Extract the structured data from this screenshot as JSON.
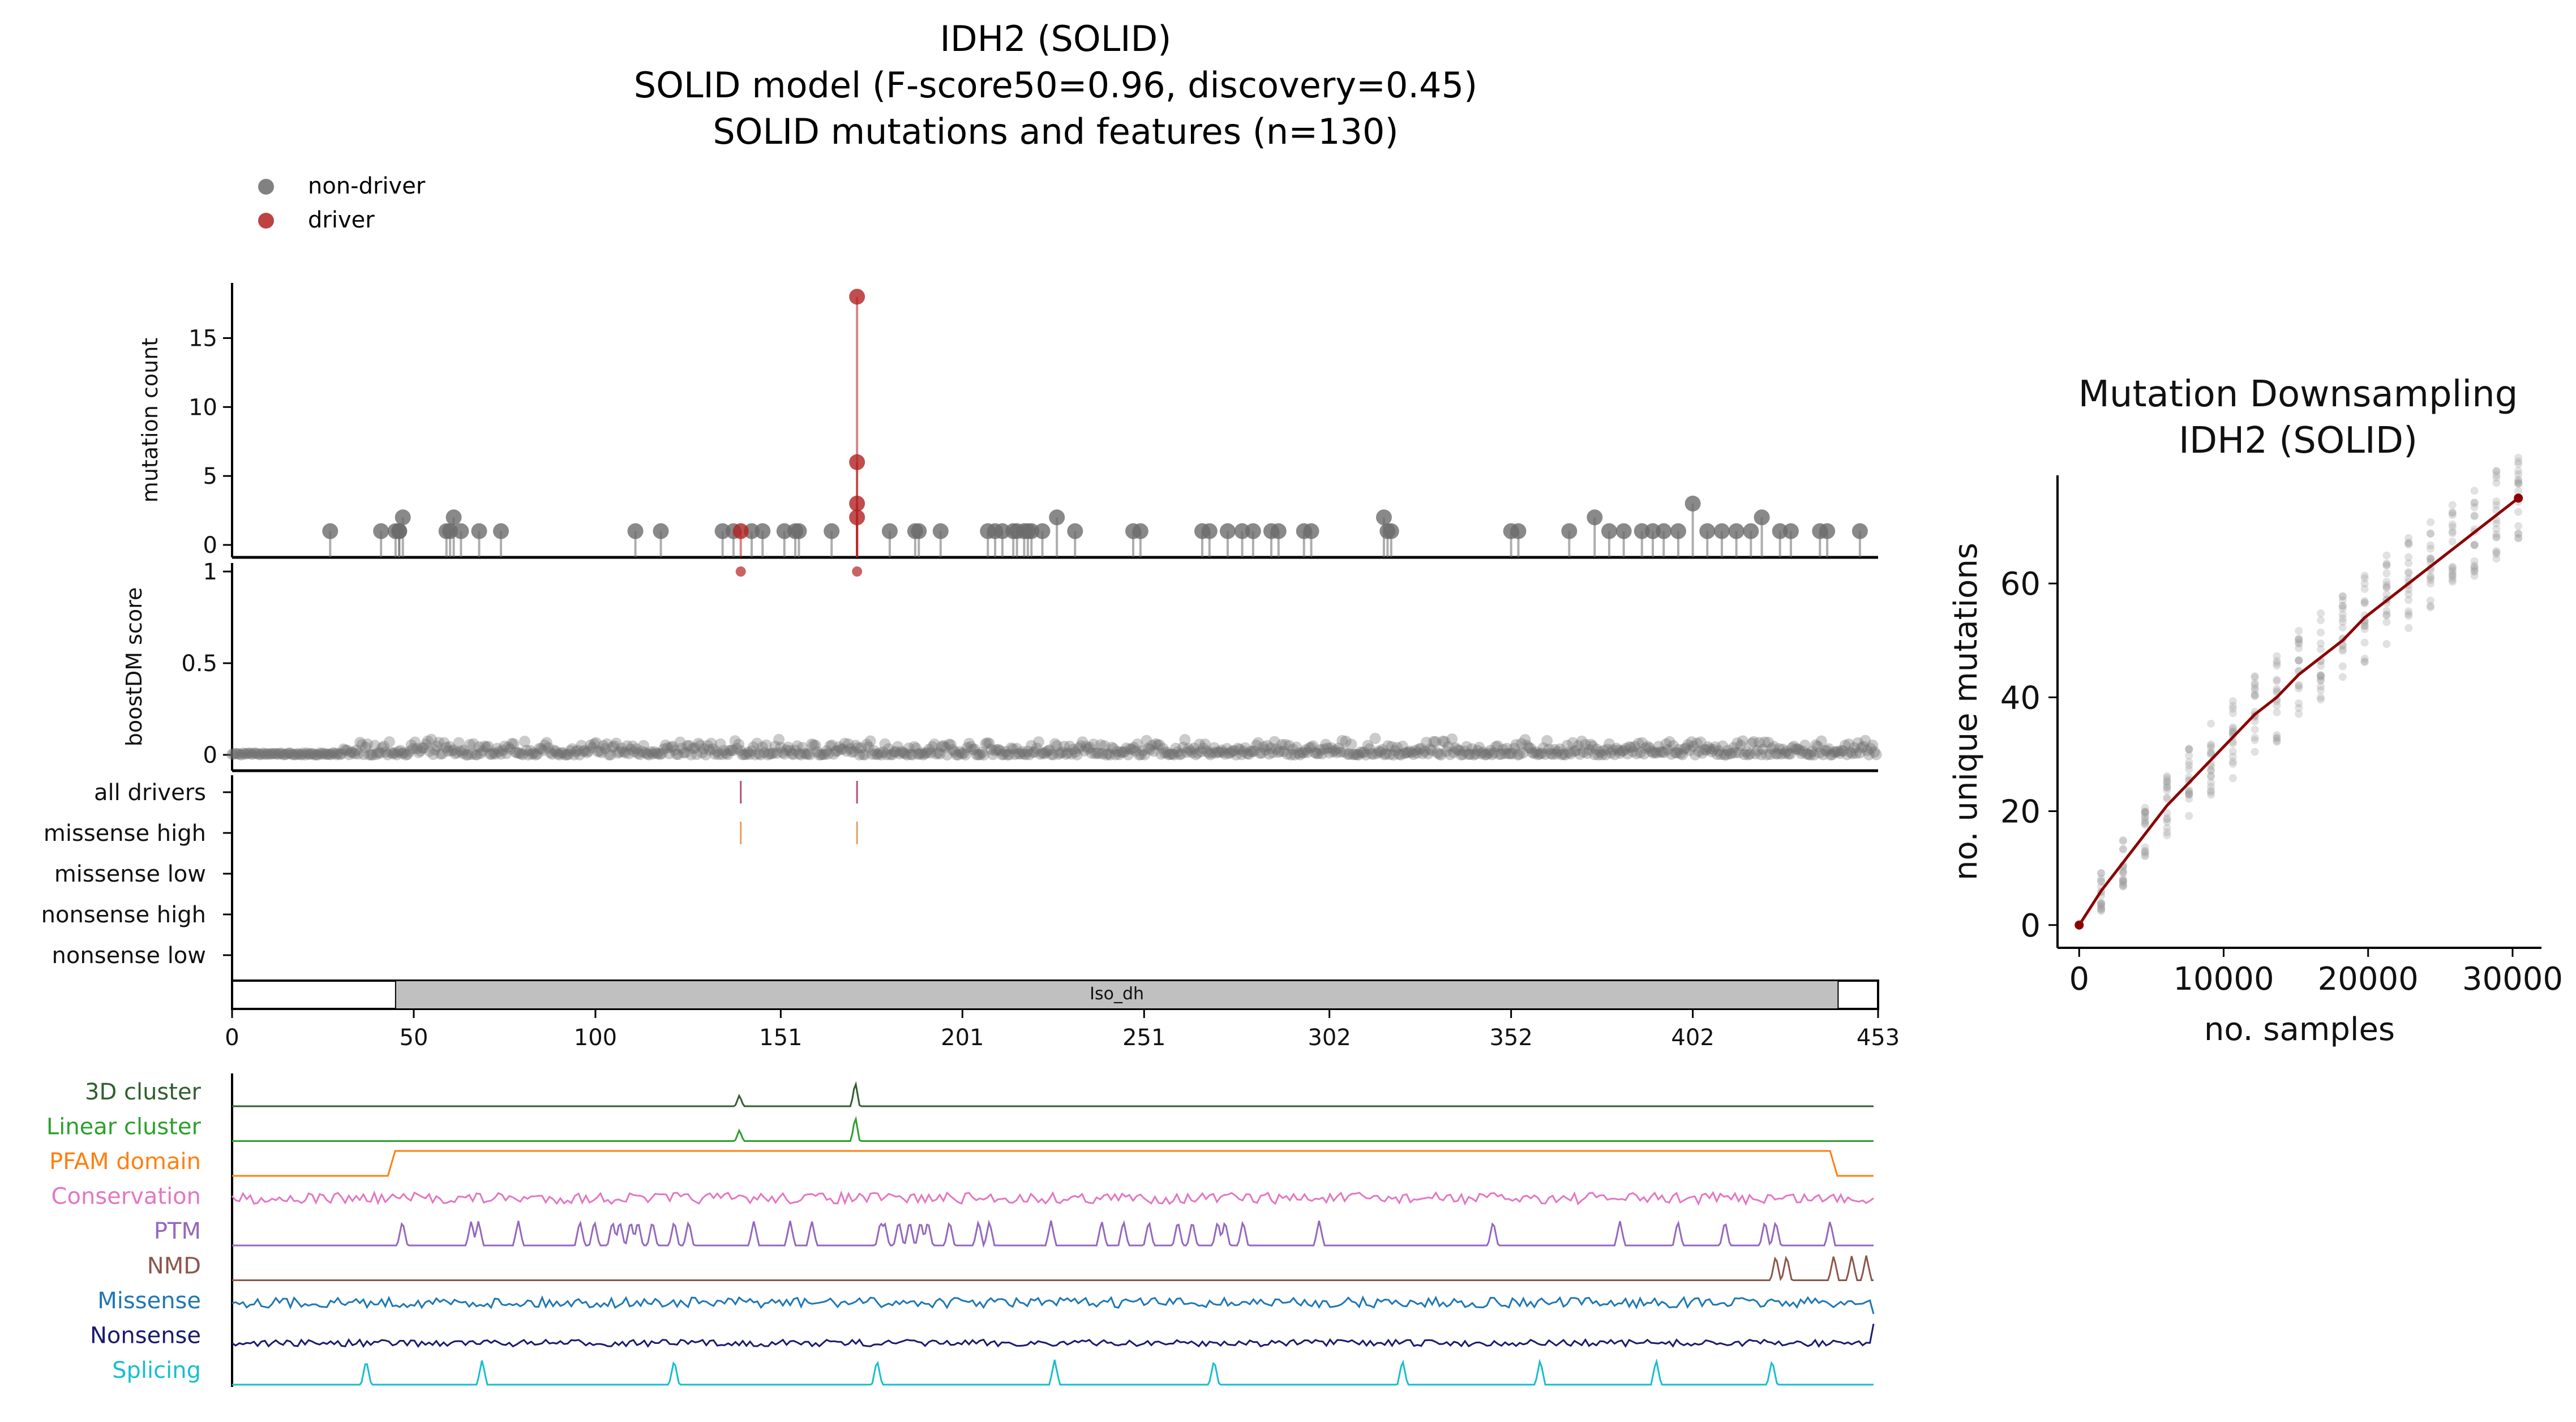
{
  "figure": {
    "title_lines": [
      "IDH2 (SOLID)",
      "SOLID model (F-score50=0.96, discovery=0.45)",
      "SOLID mutations and features (n=130)"
    ],
    "legend": [
      {
        "label": "non-driver",
        "color": "#6b6b6b"
      },
      {
        "label": "driver",
        "color": "#b22222"
      }
    ],
    "colors": {
      "non_driver": "#6b6b6b",
      "driver": "#b22222",
      "downsampling_line": "#8b0000",
      "domain_fill": "#c0c0c0"
    }
  },
  "chart_data": [
    {
      "type": "scatter",
      "panel": "mutation-count lollipop",
      "ylabel": "mutation count",
      "ylim": [
        0,
        19
      ],
      "yticks": [
        "0",
        "5",
        "10",
        "15"
      ],
      "series": [
        {
          "name": "non-driver",
          "points": [
            [
              27,
              1
            ],
            [
              41,
              1
            ],
            [
              45,
              1
            ],
            [
              46,
              1
            ],
            [
              47,
              2
            ],
            [
              46,
              1
            ],
            [
              59,
              1
            ],
            [
              60,
              1
            ],
            [
              61,
              2
            ],
            [
              63,
              1
            ],
            [
              68,
              1
            ],
            [
              74,
              1
            ],
            [
              111,
              1
            ],
            [
              118,
              1
            ],
            [
              135,
              1
            ],
            [
              138,
              1
            ],
            [
              143,
              1
            ],
            [
              146,
              1
            ],
            [
              152,
              1
            ],
            [
              155,
              1
            ],
            [
              156,
              1
            ],
            [
              165,
              1
            ],
            [
              181,
              1
            ],
            [
              188,
              1
            ],
            [
              189,
              1
            ],
            [
              195,
              1
            ],
            [
              208,
              1
            ],
            [
              210,
              1
            ],
            [
              212,
              1
            ],
            [
              215,
              1
            ],
            [
              216,
              1
            ],
            [
              218,
              1
            ],
            [
              219,
              1
            ],
            [
              220,
              1
            ],
            [
              223,
              1
            ],
            [
              227,
              2
            ],
            [
              232,
              1
            ],
            [
              248,
              1
            ],
            [
              250,
              1
            ],
            [
              267,
              1
            ],
            [
              269,
              1
            ],
            [
              274,
              1
            ],
            [
              278,
              1
            ],
            [
              281,
              1
            ],
            [
              286,
              1
            ],
            [
              288,
              1
            ],
            [
              295,
              1
            ],
            [
              297,
              1
            ],
            [
              317,
              2
            ],
            [
              318,
              1
            ],
            [
              319,
              1
            ],
            [
              352,
              1
            ],
            [
              354,
              1
            ],
            [
              368,
              1
            ],
            [
              375,
              2
            ],
            [
              379,
              1
            ],
            [
              383,
              1
            ],
            [
              388,
              1
            ],
            [
              391,
              1
            ],
            [
              394,
              1
            ],
            [
              398,
              1
            ],
            [
              402,
              3
            ],
            [
              406,
              1
            ],
            [
              410,
              1
            ],
            [
              414,
              1
            ],
            [
              418,
              1
            ],
            [
              421,
              2
            ],
            [
              426,
              1
            ],
            [
              429,
              1
            ],
            [
              437,
              1
            ],
            [
              439,
              1
            ],
            [
              448,
              1
            ]
          ]
        },
        {
          "name": "driver",
          "points": [
            [
              140,
              1
            ],
            [
              172,
              18
            ],
            [
              172,
              6
            ],
            [
              172,
              3
            ],
            [
              172,
              2
            ]
          ]
        }
      ]
    },
    {
      "type": "scatter",
      "panel": "boostDM score",
      "ylabel": "boostDM score",
      "ylim": [
        0,
        1
      ],
      "yticks": [
        "0",
        "0.5",
        "1"
      ],
      "series": [
        {
          "name": "driver",
          "points": [
            [
              140,
              1.0
            ],
            [
              172,
              1.0
            ]
          ]
        },
        {
          "name": "non-driver",
          "note_values": "dense band of scores 0–0.1 across positions 1–453"
        }
      ]
    },
    {
      "type": "table",
      "panel": "driver tracks",
      "rows": [
        "all drivers",
        "missense high",
        "missense low",
        "nonsense high",
        "nonsense low"
      ],
      "marks": [
        {
          "row": "all drivers",
          "positions": [
            140,
            172
          ],
          "color": "#b05080"
        },
        {
          "row": "missense high",
          "positions": [
            140,
            172
          ],
          "color": "#e0a060"
        }
      ]
    },
    {
      "type": "bar",
      "panel": "protein domain",
      "xlim": [
        0,
        453
      ],
      "xticks": [
        "0",
        "50",
        "100",
        "151",
        "201",
        "251",
        "302",
        "352",
        "402",
        "453"
      ],
      "domains": [
        {
          "name": "Iso_dh",
          "start": 45,
          "end": 442
        }
      ]
    },
    {
      "type": "line",
      "panel": "features",
      "series": [
        {
          "name": "3D cluster",
          "color": "#2f5f2f",
          "peaks": [
            140,
            172
          ]
        },
        {
          "name": "Linear cluster",
          "color": "#2ca02c",
          "peaks": [
            140,
            172
          ]
        },
        {
          "name": "PFAM domain",
          "color": "#ff7f0e",
          "range": [
            43,
            441
          ]
        },
        {
          "name": "Conservation",
          "color": "#e377c2"
        },
        {
          "name": "PTM",
          "color": "#9467bd",
          "peaks": [
            47,
            66,
            68,
            79,
            96,
            100,
            105,
            107,
            110,
            112,
            116,
            122,
            126,
            144,
            154,
            160,
            179,
            180,
            184,
            187,
            190,
            192,
            198,
            206,
            209,
            226,
            240,
            246,
            253,
            261,
            265,
            272,
            274,
            279,
            300,
            348,
            383,
            399,
            412,
            423,
            426,
            441
          ]
        },
        {
          "name": "NMD",
          "color": "#8c564b",
          "peaks": [
            426,
            429,
            442,
            447,
            451
          ]
        },
        {
          "name": "Missense",
          "color": "#1f77b4"
        },
        {
          "name": "Nonsense",
          "color": "#1a1a6e"
        },
        {
          "name": "Splicing",
          "color": "#17becf",
          "peaks": [
            37,
            69,
            122,
            178,
            227,
            271,
            323,
            361,
            393,
            425
          ]
        }
      ]
    },
    {
      "type": "scatter",
      "panel": "Mutation Downsampling",
      "title": "Mutation Downsampling\nIDH2 (SOLID)",
      "xlabel": "no. samples",
      "ylabel": "no. unique mutations",
      "xlim": [
        -1500,
        32000
      ],
      "ylim": [
        -4,
        79
      ],
      "xticks": [
        "0",
        "10000",
        "20000",
        "30000"
      ],
      "yticks": [
        "0",
        "20",
        "40",
        "60"
      ],
      "x": [
        0,
        1520,
        3040,
        4560,
        6080,
        7600,
        9120,
        10640,
        12160,
        13680,
        15200,
        16720,
        18240,
        19760,
        21280,
        22800,
        24320,
        25840,
        27360,
        28880,
        30400
      ],
      "series": [
        {
          "values": [
            0,
            6,
            11,
            16,
            21,
            25,
            29,
            33,
            37,
            40,
            44,
            47,
            50,
            54,
            57,
            60,
            63,
            66,
            69,
            72,
            75
          ]
        }
      ]
    }
  ]
}
